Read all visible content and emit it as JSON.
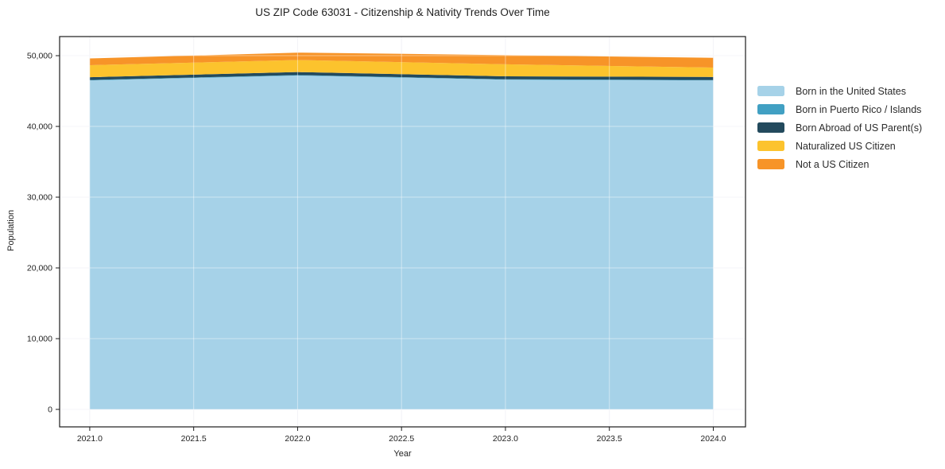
{
  "chart_data": {
    "type": "area",
    "stacked": true,
    "title": "US ZIP Code 63031 - Citizenship & Nativity Trends Over Time",
    "xlabel": "Year",
    "ylabel": "Population",
    "x": [
      2021,
      2022,
      2023,
      2024
    ],
    "series": [
      {
        "name": "Born in the United States",
        "color": "#a6d2e8",
        "values": [
          46500,
          47200,
          46600,
          46500
        ]
      },
      {
        "name": "Born in Puerto Rico / Islands",
        "color": "#41a0c3",
        "values": [
          60,
          60,
          60,
          60
        ]
      },
      {
        "name": "Born Abroad of US Parent(s)",
        "color": "#234a5d",
        "values": [
          400,
          420,
          420,
          430
        ]
      },
      {
        "name": "Naturalized US Citizen",
        "color": "#fcc32d",
        "values": [
          1700,
          1700,
          1700,
          1330
        ]
      },
      {
        "name": "Not a US Citizen",
        "color": "#f79428",
        "values": [
          950,
          1050,
          1300,
          1380
        ]
      }
    ],
    "x_ticks": [
      "2021.0",
      "2021.5",
      "2022.0",
      "2022.5",
      "2023.0",
      "2023.5",
      "2024.0"
    ],
    "x_tick_values": [
      2021,
      2021.5,
      2022,
      2022.5,
      2023,
      2023.5,
      2024
    ],
    "y_ticks": [
      "0",
      "10,000",
      "20,000",
      "30,000",
      "40,000",
      "50,000"
    ],
    "y_tick_values": [
      0,
      10000,
      20000,
      30000,
      40000,
      50000
    ],
    "xlim": [
      2020.855,
      2024.155
    ],
    "ylim": [
      -2470,
      52700
    ],
    "grid": true,
    "legend_position": "right",
    "colors": {
      "grid_under": "#ebebf2",
      "grid_over": "rgba(255,255,255,0.45)",
      "frame": "#1c1c1c",
      "tick": "#1c1c1c"
    }
  }
}
